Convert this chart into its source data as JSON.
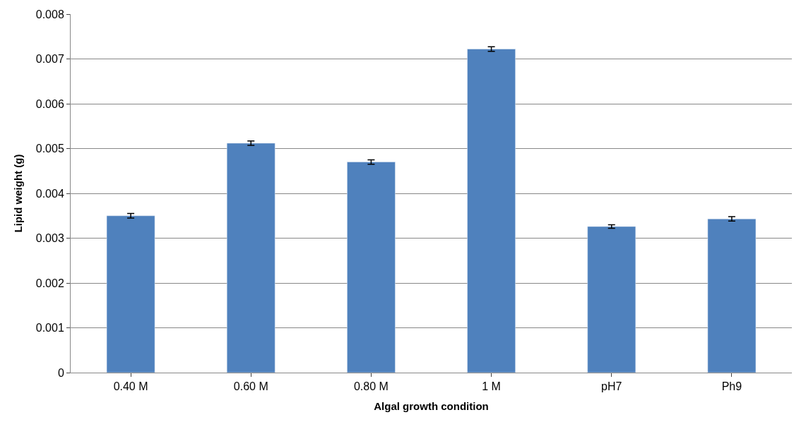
{
  "chart_data": {
    "type": "bar",
    "xlabel": "Algal growth condition",
    "ylabel": "Lipid weight (g)",
    "categories": [
      "0.40 M",
      "0.60 M",
      "0.80 M",
      "1 M",
      "pH7",
      "Ph9"
    ],
    "series": [
      {
        "color": "#4f81bd",
        "values": [
          0.0035,
          0.00512,
          0.0047,
          0.00722,
          0.00326,
          0.00343
        ],
        "errors": [
          5e-05,
          5e-05,
          5e-05,
          5e-05,
          4e-05,
          5e-05
        ]
      }
    ],
    "ylim": [
      0,
      0.008
    ],
    "yticks": [
      0,
      0.001,
      0.002,
      0.003,
      0.004,
      0.005,
      0.006,
      0.007,
      0.008
    ],
    "grid": "y"
  }
}
